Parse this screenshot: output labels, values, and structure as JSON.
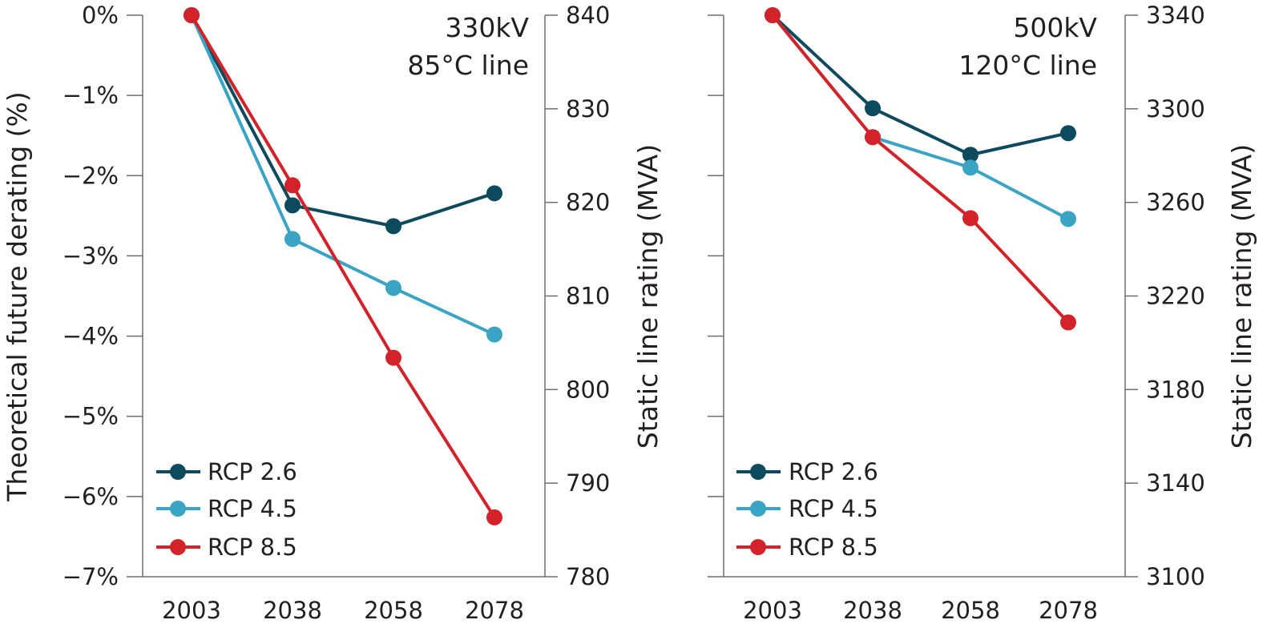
{
  "chart_data": [
    {
      "type": "line",
      "title_lines": [
        "330kV",
        "85°C line"
      ],
      "ylabel_left": "Theoretical future derating (%)",
      "ylabel_right": "Static line rating (MVA)",
      "ylim_left": [
        -7,
        0
      ],
      "ylim_right": [
        780,
        840
      ],
      "left_ticks": [
        "0%",
        "−1%",
        "−2%",
        "−3%",
        "−4%",
        "−5%",
        "−6%",
        "−7%"
      ],
      "right_ticks": [
        "840",
        "830",
        "820",
        "810",
        "800",
        "790",
        "780"
      ],
      "categories": [
        "2003",
        "2038",
        "2058",
        "2078"
      ],
      "series": [
        {
          "name": "RCP 2.6",
          "color": "#0d4a5e",
          "values": [
            0,
            -2.37,
            -2.63,
            -2.22
          ]
        },
        {
          "name": "RCP 4.5",
          "color": "#3ba3c3",
          "values": [
            0,
            -2.79,
            -3.4,
            -3.98
          ]
        },
        {
          "name": "RCP 8.5",
          "color": "#d2232a",
          "values": [
            0,
            -2.12,
            -4.27,
            -6.26
          ]
        }
      ],
      "legend_position": "bottom-left",
      "grid": false
    },
    {
      "type": "line",
      "title_lines": [
        "500kV",
        "120°C line"
      ],
      "ylabel_right": "Static line rating (MVA)",
      "ylim_left": [
        -7,
        0
      ],
      "ylim_right": [
        3100,
        3340
      ],
      "right_ticks": [
        "3340",
        "3300",
        "3260",
        "3220",
        "3180",
        "3140",
        "3100"
      ],
      "categories": [
        "2003",
        "2038",
        "2058",
        "2078"
      ],
      "series": [
        {
          "name": "RCP 2.6",
          "color": "#0d4a5e",
          "values": [
            0,
            -1.16,
            -1.74,
            -1.47
          ]
        },
        {
          "name": "RCP 4.5",
          "color": "#3ba3c3",
          "values": [
            0,
            -1.52,
            -1.9,
            -2.54
          ]
        },
        {
          "name": "RCP 8.5",
          "color": "#d2232a",
          "values": [
            0,
            -1.52,
            -2.53,
            -3.83
          ]
        }
      ],
      "legend_position": "bottom-left",
      "grid": false
    }
  ]
}
